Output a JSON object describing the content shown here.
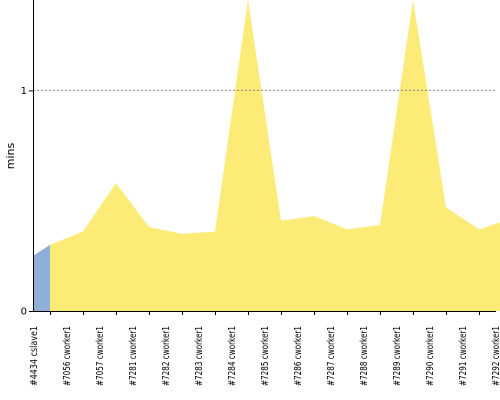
{
  "chart_data": {
    "type": "area",
    "ylabel": "mins",
    "xlabel": "",
    "ylim": [
      0,
      1.41
    ],
    "yticks": [
      0,
      1
    ],
    "reference_line": {
      "y": 1,
      "style": "dotted"
    },
    "categories": [
      "#4434 cslave1",
      "#7056 cworker1",
      "#7057 cworker1",
      "#7281 cworker1",
      "#7282 cworker1",
      "#7283 cworker1",
      "#7284 cworker1",
      "#7285 cworker1",
      "#7286 cworker1",
      "#7287 cworker1",
      "#7288 cworker1",
      "#7289 cworker1",
      "#7290 cworker1",
      "#7291 cworker1",
      "#7292 cworker1"
    ],
    "values": [
      0.3,
      0.36,
      0.58,
      0.38,
      0.35,
      0.36,
      1.41,
      0.41,
      0.43,
      0.37,
      0.39,
      1.41,
      0.47,
      0.37,
      0.42
    ],
    "leading_value": 0.25,
    "colors": {
      "first_segment": "#8eb0d8",
      "fill": "#fdeb78",
      "grid": "#888888",
      "axis": "#000000"
    }
  }
}
